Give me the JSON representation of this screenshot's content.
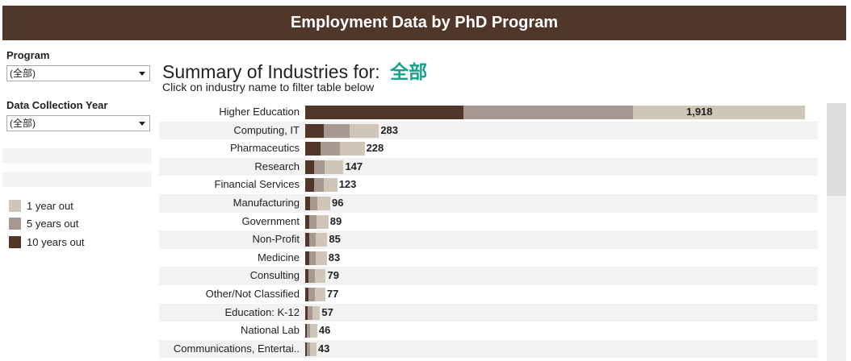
{
  "header": {
    "title": "Employment Data by PhD Program"
  },
  "filters": {
    "program": {
      "label": "Program",
      "value": "(全部)"
    },
    "year": {
      "label": "Data Collection Year",
      "value": "(全部)"
    }
  },
  "legend": [
    {
      "label": "1 year out",
      "color": "#cfc6b8"
    },
    {
      "label": "5 years out",
      "color": "#a79892"
    },
    {
      "label": "10 years out",
      "color": "#513729"
    }
  ],
  "main": {
    "title": "Summary of Industries for:",
    "filter_value": "全部",
    "subtitle": "Click on industry name to filter table below"
  },
  "chart_data": {
    "type": "bar",
    "orientation": "horizontal-stacked",
    "stack_order": [
      "10 years out",
      "5 years out",
      "1 year out"
    ],
    "categories": [
      "Higher Education",
      "Computing, IT",
      "Pharmaceutics",
      "Research",
      "Financial Services",
      "Manufacturing",
      "Government",
      "Non-Profit",
      "Medicine",
      "Consulting",
      "Other/Not Classified",
      "Education: K-12",
      "National Lab",
      "Communications, Entertai.."
    ],
    "totals": [
      "1,918",
      "283",
      "228",
      "147",
      "123",
      "96",
      "89",
      "85",
      "83",
      "79",
      "77",
      "57",
      "46",
      "43"
    ],
    "series": [
      {
        "name": "10 years out",
        "values": [
          606,
          71,
          58,
          33,
          34,
          18,
          16,
          14,
          14,
          13,
          12,
          10,
          5,
          5
        ]
      },
      {
        "name": "5 years out",
        "values": [
          652,
          100,
          75,
          40,
          38,
          29,
          28,
          27,
          26,
          24,
          24,
          18,
          14,
          13
        ]
      },
      {
        "name": "1 year out",
        "values": [
          660,
          112,
          95,
          74,
          51,
          49,
          45,
          44,
          43,
          42,
          41,
          29,
          27,
          25
        ]
      }
    ],
    "colors": {
      "10 years out": "#513729",
      "5 years out": "#a79892",
      "1 year out": "#cfc6b8"
    }
  }
}
